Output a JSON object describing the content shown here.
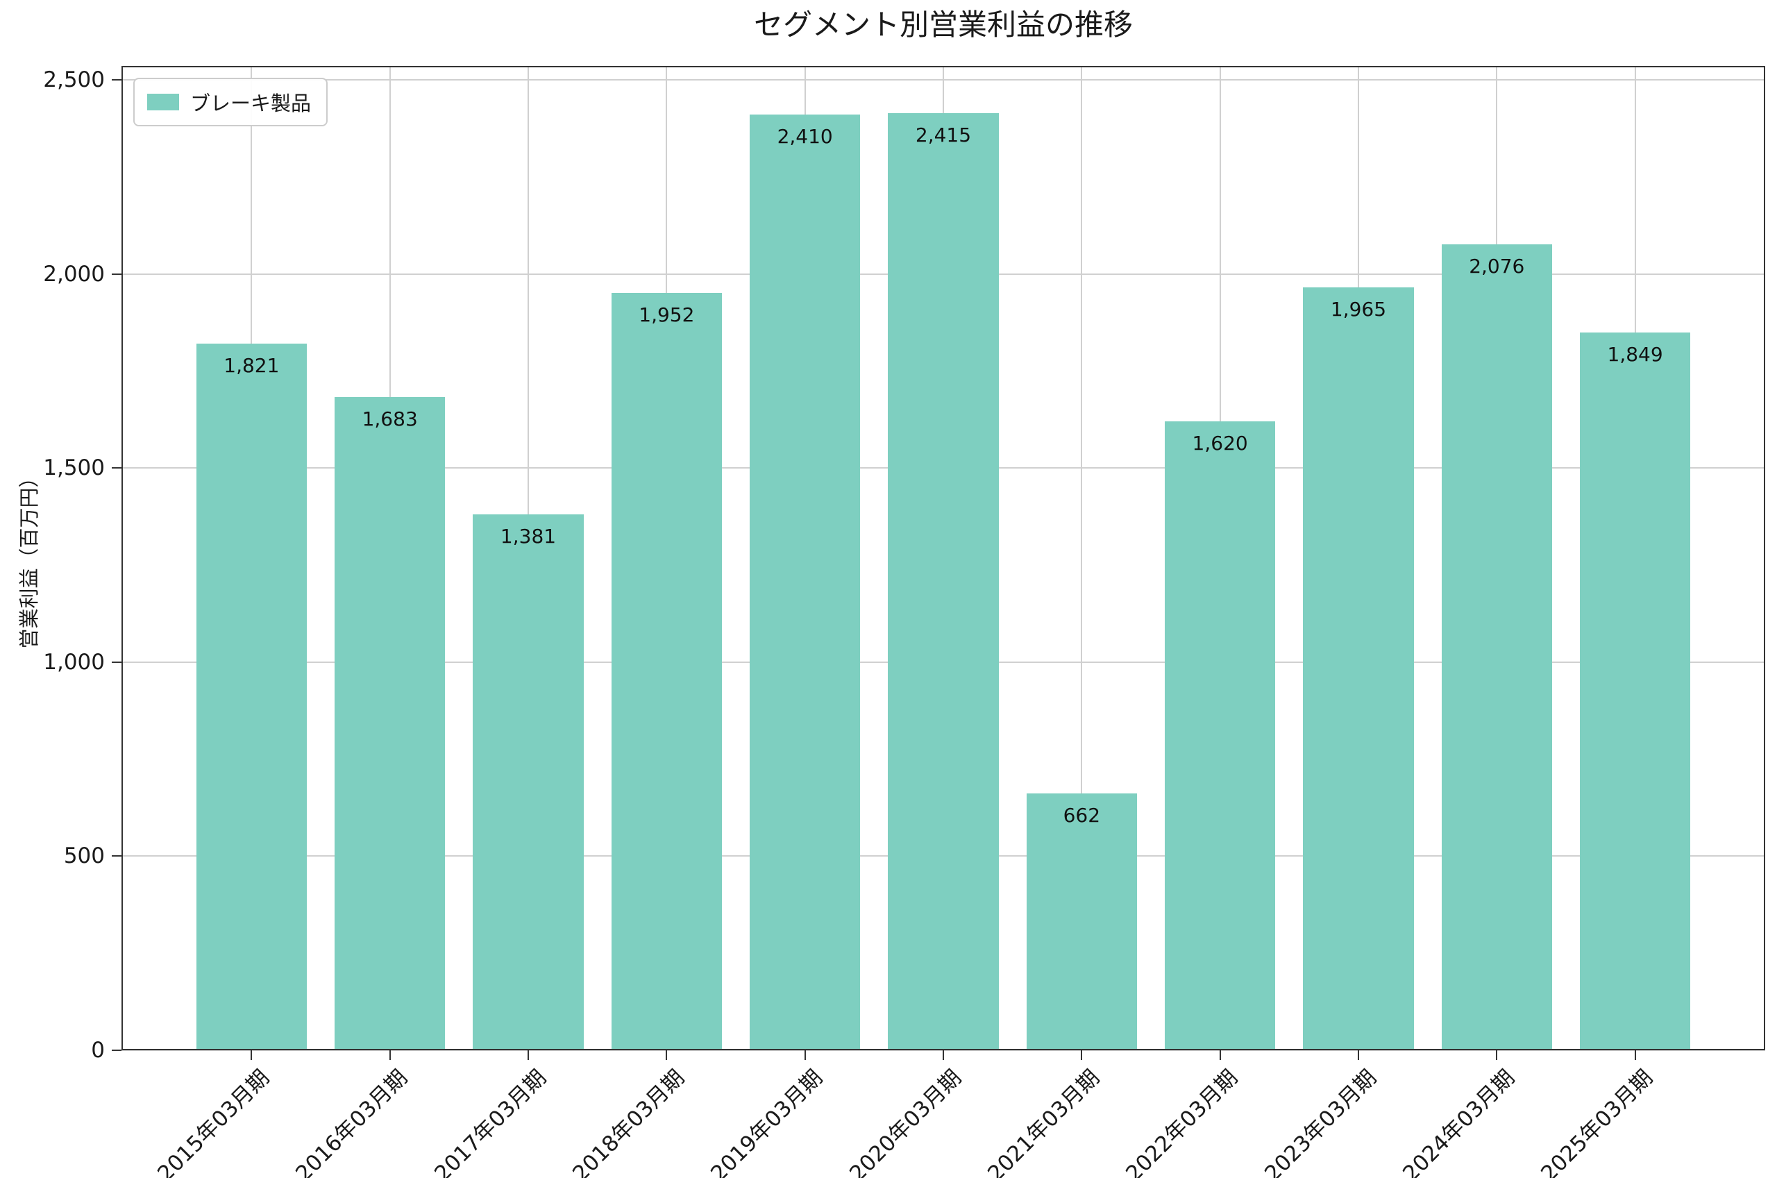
{
  "chart_data": {
    "type": "bar",
    "title": "セグメント別営業利益の推移",
    "xlabel": "",
    "ylabel": "営業利益（百万円）",
    "categories": [
      "2015年03月期",
      "2016年03月期",
      "2017年03月期",
      "2018年03月期",
      "2019年03月期",
      "2020年03月期",
      "2021年03月期",
      "2022年03月期",
      "2023年03月期",
      "2024年03月期",
      "2025年03月期"
    ],
    "series": [
      {
        "name": "ブレーキ製品",
        "values": [
          1821,
          1683,
          1381,
          1952,
          2410,
          2415,
          662,
          1620,
          1965,
          2076,
          1849
        ],
        "value_labels": [
          "1,821",
          "1,683",
          "1,381",
          "1,952",
          "2,410",
          "2,415",
          "662",
          "1,620",
          "1,965",
          "2,076",
          "1,849"
        ]
      }
    ],
    "ylim": [
      0,
      2536
    ],
    "yticks": {
      "values": [
        0,
        500,
        1000,
        1500,
        2000,
        2500
      ],
      "labels": [
        "0",
        "500",
        "1,000",
        "1,500",
        "2,000",
        "2,500"
      ]
    },
    "grid": true,
    "legend_position": "upper-left",
    "colors": {
      "bar": "#7ECFC0",
      "grid": "#D0D0D0",
      "axis": "#333333",
      "text": "#1A1A1A",
      "background": "#FFFFFF"
    }
  }
}
